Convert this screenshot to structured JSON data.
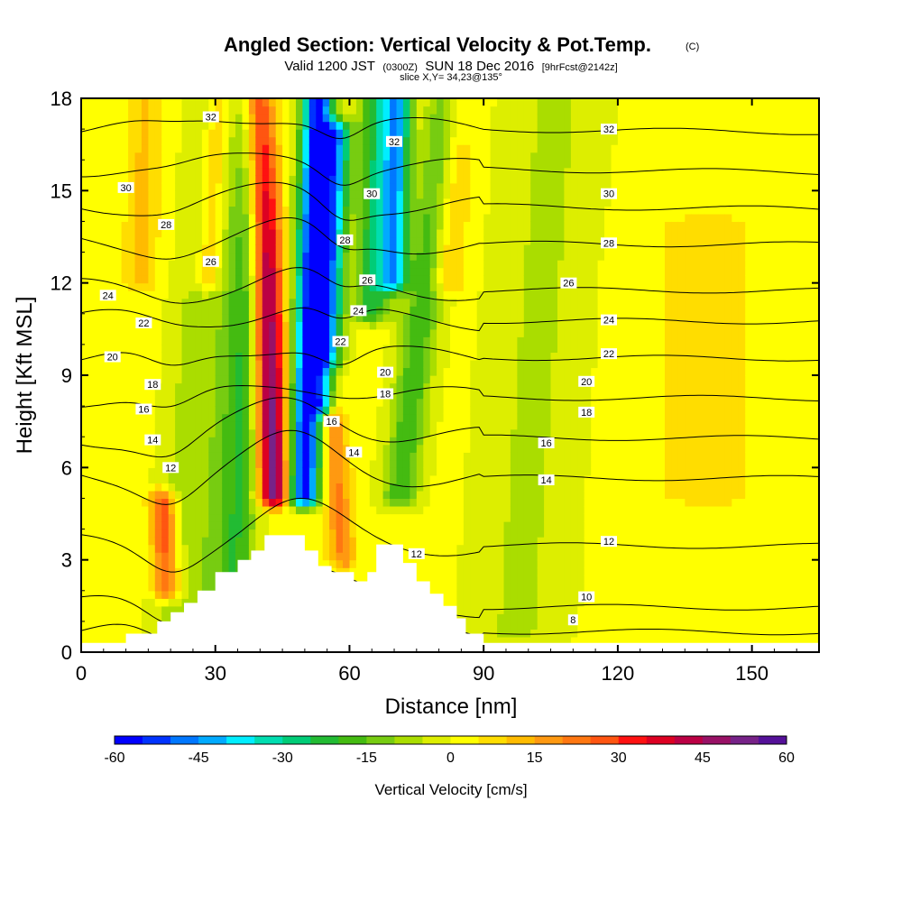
{
  "chart_data": {
    "type": "heatmap",
    "title": "Angled Section: Vertical Velocity & Pot.Temp.",
    "title_mark": "(C)",
    "subtitle": {
      "valid": "Valid 1200 JST",
      "utc": "(0300Z)",
      "date": "SUN 18 Dec 2016",
      "forecast": "[9hrFcst@2142z]",
      "slice": "slice X,Y= 34,23@135°"
    },
    "xlabel": "Distance [nm]",
    "ylabel": "Height [Kft MSL]",
    "xlim": [
      0,
      165
    ],
    "ylim": [
      0,
      18
    ],
    "xticks": [
      "0",
      "30",
      "60",
      "90",
      "120",
      "150"
    ],
    "yticks": [
      "0",
      "3",
      "6",
      "9",
      "12",
      "15",
      "18"
    ],
    "grid": false,
    "colorbar": {
      "label": "Vertical Velocity [cm/s]",
      "tick_labels": [
        "-60",
        "-45",
        "-30",
        "-15",
        "0",
        "15",
        "30",
        "45",
        "60"
      ],
      "min": -60,
      "max": 60,
      "colors": [
        "#0000ff",
        "#0033ff",
        "#0077ff",
        "#00aaff",
        "#00eeff",
        "#00ddb0",
        "#00cc77",
        "#22bb33",
        "#44bb11",
        "#77cc11",
        "#aadd00",
        "#ddee00",
        "#ffff00",
        "#ffdd00",
        "#ffbb00",
        "#ff9911",
        "#ff7711",
        "#ff5511",
        "#ff1111",
        "#dd0022",
        "#bb0044",
        "#991166",
        "#772288",
        "#551199"
      ]
    },
    "velocity_field": {
      "background": 1,
      "features": [
        {
          "x": 23,
          "ylo": 0.5,
          "yhi": 18,
          "amp": -8,
          "dx": 5,
          "lean": 0.55
        },
        {
          "x": 31,
          "ylo": 0.5,
          "yhi": 18,
          "amp": -10,
          "dx": 5,
          "lean": 0.55
        },
        {
          "x": 36,
          "ylo": 2,
          "yhi": 18,
          "amp": -18,
          "dx": 4,
          "lean": 0.35
        },
        {
          "x": 43,
          "ylo": 5,
          "yhi": 18,
          "amp": 52,
          "dx": 3.5,
          "lean": -0.25
        },
        {
          "x": 50,
          "ylo": 5,
          "yhi": 18,
          "amp": -60,
          "dx": 3.5,
          "lean": 0.25
        },
        {
          "x": 54,
          "ylo": 8,
          "yhi": 17,
          "amp": -40,
          "dx": 3,
          "lean": 0.3
        },
        {
          "x": 57,
          "ylo": 3,
          "yhi": 9,
          "amp": 20,
          "dx": 3,
          "lean": -0.5
        },
        {
          "x": 64,
          "ylo": 11,
          "yhi": 18,
          "amp": -25,
          "dx": 4,
          "lean": 0.2
        },
        {
          "x": 69,
          "ylo": 12,
          "yhi": 18,
          "amp": -40,
          "dx": 3,
          "lean": 0.15
        },
        {
          "x": 72,
          "ylo": 5,
          "yhi": 18,
          "amp": -20,
          "dx": 4,
          "lean": 0.8
        },
        {
          "x": 80,
          "ylo": 12,
          "yhi": 18,
          "amp": 12,
          "dx": 4,
          "lean": 0.3
        },
        {
          "x": 18,
          "ylo": 2,
          "yhi": 5,
          "amp": 30,
          "dx": 3,
          "lean": -0.3
        },
        {
          "x": 26,
          "ylo": 12,
          "yhi": 18,
          "amp": 15,
          "dx": 3,
          "lean": 0.4
        },
        {
          "x": 12,
          "ylo": 12,
          "yhi": 18,
          "amp": 10,
          "dx": 4,
          "lean": 0.2
        },
        {
          "x": 100,
          "ylo": 0.5,
          "yhi": 18,
          "amp": -7,
          "dx": 10,
          "lean": 0.5
        },
        {
          "x": 140,
          "ylo": 5,
          "yhi": 14,
          "amp": 6,
          "dx": 14,
          "lean": 0
        }
      ]
    },
    "terrain_kft": [
      [
        0,
        0.3
      ],
      [
        10,
        0.3
      ],
      [
        10,
        0.6
      ],
      [
        17,
        0.6
      ],
      [
        17,
        1.0
      ],
      [
        20,
        1.0
      ],
      [
        20,
        1.3
      ],
      [
        23,
        1.3
      ],
      [
        23,
        1.6
      ],
      [
        26,
        1.6
      ],
      [
        26,
        2.0
      ],
      [
        30,
        2.0
      ],
      [
        30,
        2.6
      ],
      [
        35,
        2.6
      ],
      [
        35,
        3.0
      ],
      [
        38,
        3.0
      ],
      [
        38,
        3.3
      ],
      [
        41,
        3.3
      ],
      [
        41,
        3.8
      ],
      [
        50,
        3.8
      ],
      [
        50,
        3.3
      ],
      [
        53,
        3.3
      ],
      [
        53,
        2.8
      ],
      [
        56,
        2.8
      ],
      [
        56,
        2.6
      ],
      [
        61,
        2.6
      ],
      [
        61,
        2.3
      ],
      [
        64,
        2.3
      ],
      [
        64,
        2.6
      ],
      [
        66,
        2.6
      ],
      [
        66,
        3.5
      ],
      [
        72,
        3.5
      ],
      [
        72,
        2.9
      ],
      [
        75,
        2.9
      ],
      [
        75,
        2.3
      ],
      [
        78,
        2.3
      ],
      [
        78,
        1.9
      ],
      [
        81,
        1.9
      ],
      [
        81,
        1.5
      ],
      [
        84,
        1.5
      ],
      [
        84,
        1.1
      ],
      [
        86,
        1.1
      ],
      [
        86,
        0.6
      ],
      [
        90,
        0.6
      ],
      [
        90,
        0.3
      ],
      [
        165,
        0.3
      ]
    ],
    "theta_contours": {
      "levels": [
        8,
        10,
        12,
        14,
        16,
        18,
        20,
        22,
        24,
        26,
        28,
        30,
        32
      ],
      "base_heights_kft": [
        0.7,
        1.5,
        3.5,
        5.7,
        7.0,
        8.3,
        9.6,
        10.8,
        11.8,
        13.3,
        14.6,
        15.8,
        17.1
      ],
      "labels": [
        {
          "text": "8",
          "x": 110,
          "y": 1.05
        },
        {
          "text": "10",
          "x": 113,
          "y": 1.8
        },
        {
          "text": "12",
          "x": 118,
          "y": 3.6
        },
        {
          "text": "12",
          "x": 75,
          "y": 3.2
        },
        {
          "text": "12",
          "x": 20,
          "y": 6.0
        },
        {
          "text": "14",
          "x": 16,
          "y": 6.9
        },
        {
          "text": "14",
          "x": 61,
          "y": 6.5
        },
        {
          "text": "14",
          "x": 104,
          "y": 5.6
        },
        {
          "text": "16",
          "x": 14,
          "y": 7.9
        },
        {
          "text": "16",
          "x": 56,
          "y": 7.5
        },
        {
          "text": "16",
          "x": 104,
          "y": 6.8
        },
        {
          "text": "18",
          "x": 16,
          "y": 8.7
        },
        {
          "text": "18",
          "x": 68,
          "y": 8.4
        },
        {
          "text": "18",
          "x": 113,
          "y": 7.8
        },
        {
          "text": "20",
          "x": 7,
          "y": 9.6
        },
        {
          "text": "20",
          "x": 68,
          "y": 9.1
        },
        {
          "text": "20",
          "x": 113,
          "y": 8.8
        },
        {
          "text": "22",
          "x": 14,
          "y": 10.7
        },
        {
          "text": "22",
          "x": 58,
          "y": 10.1
        },
        {
          "text": "22",
          "x": 118,
          "y": 9.7
        },
        {
          "text": "24",
          "x": 6,
          "y": 11.6
        },
        {
          "text": "24",
          "x": 62,
          "y": 11.1
        },
        {
          "text": "24",
          "x": 118,
          "y": 10.8
        },
        {
          "text": "26",
          "x": 29,
          "y": 12.7
        },
        {
          "text": "26",
          "x": 64,
          "y": 12.1
        },
        {
          "text": "26",
          "x": 109,
          "y": 12.0
        },
        {
          "text": "28",
          "x": 19,
          "y": 13.9
        },
        {
          "text": "28",
          "x": 59,
          "y": 13.4
        },
        {
          "text": "28",
          "x": 118,
          "y": 13.3
        },
        {
          "text": "30",
          "x": 10,
          "y": 15.1
        },
        {
          "text": "30",
          "x": 65,
          "y": 14.9
        },
        {
          "text": "30",
          "x": 118,
          "y": 14.9
        },
        {
          "text": "32",
          "x": 29,
          "y": 17.4
        },
        {
          "text": "32",
          "x": 70,
          "y": 16.6
        },
        {
          "text": "32",
          "x": 118,
          "y": 17.0
        }
      ]
    }
  }
}
